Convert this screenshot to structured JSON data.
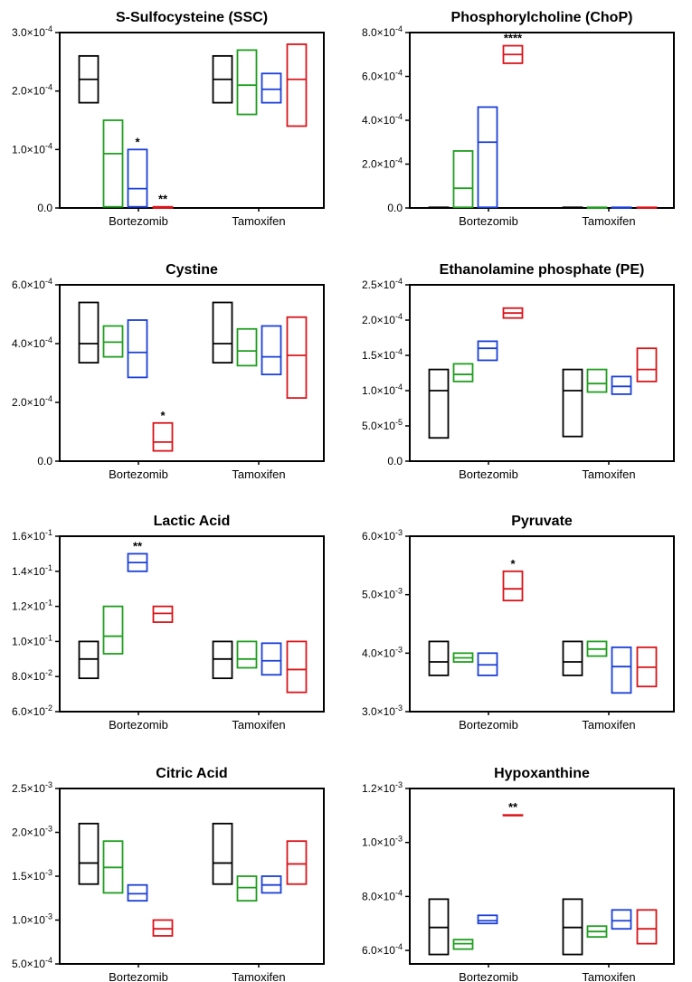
{
  "groups": [
    "Bortezomib",
    "Tamoxifen"
  ],
  "series_colors": [
    "#000000",
    "#1f9e1f",
    "#1a3fd6",
    "#d9141a"
  ],
  "chart_data": [
    {
      "type": "box",
      "title": "S-Sulfocysteine (SSC)",
      "ylim": [
        0,
        0.0003
      ],
      "yticks": [
        0,
        0.0001,
        0.0002,
        0.0003
      ],
      "ytick_labels": [
        {
          "m": "0.0",
          "e": ""
        },
        {
          "m": "1.0×10",
          "e": "-4"
        },
        {
          "m": "2.0×10",
          "e": "-4"
        },
        {
          "m": "3.0×10",
          "e": "-4"
        }
      ],
      "boxes": [
        {
          "group": "Bortezomib",
          "series": 0,
          "min": 0.00018,
          "mid": 0.00022,
          "max": 0.00026
        },
        {
          "group": "Bortezomib",
          "series": 1,
          "min": 2e-06,
          "mid": 9.3e-05,
          "max": 0.00015
        },
        {
          "group": "Bortezomib",
          "series": 2,
          "min": 2e-06,
          "mid": 3.3e-05,
          "max": 0.0001,
          "sig": "*"
        },
        {
          "group": "Bortezomib",
          "series": 3,
          "min": 0.0,
          "mid": 0.0,
          "max": 2e-06,
          "sig": "**"
        },
        {
          "group": "Tamoxifen",
          "series": 0,
          "min": 0.00018,
          "mid": 0.00022,
          "max": 0.00026
        },
        {
          "group": "Tamoxifen",
          "series": 1,
          "min": 0.00016,
          "mid": 0.00021,
          "max": 0.00027
        },
        {
          "group": "Tamoxifen",
          "series": 2,
          "min": 0.00018,
          "mid": 0.000203,
          "max": 0.00023
        },
        {
          "group": "Tamoxifen",
          "series": 3,
          "min": 0.00014,
          "mid": 0.00022,
          "max": 0.00028
        }
      ]
    },
    {
      "type": "box",
      "title": "Phosphorylcholine (ChoP)",
      "ylim": [
        0,
        0.0008
      ],
      "yticks": [
        0,
        0.0002,
        0.0004,
        0.0006,
        0.0008
      ],
      "ytick_labels": [
        {
          "m": "0.0",
          "e": ""
        },
        {
          "m": "2.0×10",
          "e": "-4"
        },
        {
          "m": "4.0×10",
          "e": "-4"
        },
        {
          "m": "6.0×10",
          "e": "-4"
        },
        {
          "m": "8.0×10",
          "e": "-4"
        }
      ],
      "boxes": [
        {
          "group": "Bortezomib",
          "series": 0,
          "min": 0.0,
          "mid": 0.0,
          "max": 3e-06
        },
        {
          "group": "Bortezomib",
          "series": 1,
          "min": 3e-06,
          "mid": 9e-05,
          "max": 0.00026
        },
        {
          "group": "Bortezomib",
          "series": 2,
          "min": 3e-06,
          "mid": 0.0003,
          "max": 0.00046
        },
        {
          "group": "Bortezomib",
          "series": 3,
          "min": 0.00066,
          "mid": 0.0007,
          "max": 0.00074,
          "sig": "****"
        },
        {
          "group": "Tamoxifen",
          "series": 0,
          "min": 0.0,
          "mid": 0.0,
          "max": 3e-06
        },
        {
          "group": "Tamoxifen",
          "series": 1,
          "min": 0.0,
          "mid": 0.0,
          "max": 3e-06
        },
        {
          "group": "Tamoxifen",
          "series": 2,
          "min": 0.0,
          "mid": 0.0,
          "max": 3e-06
        },
        {
          "group": "Tamoxifen",
          "series": 3,
          "min": 0.0,
          "mid": 0.0,
          "max": 3e-06
        }
      ]
    },
    {
      "type": "box",
      "title": "Cystine",
      "ylim": [
        0,
        0.0006
      ],
      "yticks": [
        0,
        0.0002,
        0.0004,
        0.0006
      ],
      "ytick_labels": [
        {
          "m": "0.0",
          "e": ""
        },
        {
          "m": "2.0×10",
          "e": "-4"
        },
        {
          "m": "4.0×10",
          "e": "-4"
        },
        {
          "m": "6.0×10",
          "e": "-4"
        }
      ],
      "boxes": [
        {
          "group": "Bortezomib",
          "series": 0,
          "min": 0.000335,
          "mid": 0.0004,
          "max": 0.00054
        },
        {
          "group": "Bortezomib",
          "series": 1,
          "min": 0.000355,
          "mid": 0.000405,
          "max": 0.00046
        },
        {
          "group": "Bortezomib",
          "series": 2,
          "min": 0.000285,
          "mid": 0.00037,
          "max": 0.00048
        },
        {
          "group": "Bortezomib",
          "series": 3,
          "min": 3.5e-05,
          "mid": 6.5e-05,
          "max": 0.00013,
          "sig": "*"
        },
        {
          "group": "Tamoxifen",
          "series": 0,
          "min": 0.000335,
          "mid": 0.0004,
          "max": 0.00054
        },
        {
          "group": "Tamoxifen",
          "series": 1,
          "min": 0.000325,
          "mid": 0.000375,
          "max": 0.00045
        },
        {
          "group": "Tamoxifen",
          "series": 2,
          "min": 0.000295,
          "mid": 0.000355,
          "max": 0.00046
        },
        {
          "group": "Tamoxifen",
          "series": 3,
          "min": 0.000215,
          "mid": 0.00036,
          "max": 0.00049
        }
      ]
    },
    {
      "type": "box",
      "title": "Ethanolamine phosphate (PE)",
      "ylim": [
        0,
        0.00025
      ],
      "yticks": [
        0,
        5e-05,
        0.0001,
        0.00015,
        0.0002,
        0.00025
      ],
      "ytick_labels": [
        {
          "m": "0.0",
          "e": ""
        },
        {
          "m": "5.0×10",
          "e": "-5"
        },
        {
          "m": "1.0×10",
          "e": "-4"
        },
        {
          "m": "1.5×10",
          "e": "-4"
        },
        {
          "m": "2.0×10",
          "e": "-4"
        },
        {
          "m": "2.5×10",
          "e": "-4"
        }
      ],
      "boxes": [
        {
          "group": "Bortezomib",
          "series": 0,
          "min": 3.3e-05,
          "mid": 0.0001,
          "max": 0.00013
        },
        {
          "group": "Bortezomib",
          "series": 1,
          "min": 0.000113,
          "mid": 0.000123,
          "max": 0.000138
        },
        {
          "group": "Bortezomib",
          "series": 2,
          "min": 0.000143,
          "mid": 0.00016,
          "max": 0.00017
        },
        {
          "group": "Bortezomib",
          "series": 3,
          "min": 0.000203,
          "mid": 0.00021,
          "max": 0.000217
        },
        {
          "group": "Tamoxifen",
          "series": 0,
          "min": 3.5e-05,
          "mid": 0.0001,
          "max": 0.00013
        },
        {
          "group": "Tamoxifen",
          "series": 1,
          "min": 9.8e-05,
          "mid": 0.00011,
          "max": 0.00013
        },
        {
          "group": "Tamoxifen",
          "series": 2,
          "min": 9.5e-05,
          "mid": 0.000106,
          "max": 0.00012
        },
        {
          "group": "Tamoxifen",
          "series": 3,
          "min": 0.000113,
          "mid": 0.00013,
          "max": 0.00016
        }
      ]
    },
    {
      "type": "box",
      "title": "Lactic Acid",
      "ylim": [
        0.06,
        0.16
      ],
      "yticks": [
        0.06,
        0.08,
        0.1,
        0.12,
        0.14,
        0.16
      ],
      "ytick_labels": [
        {
          "m": "6.0×10",
          "e": "-2"
        },
        {
          "m": "8.0×10",
          "e": "-2"
        },
        {
          "m": "1.0×10",
          "e": "-1"
        },
        {
          "m": "1.2×10",
          "e": "-1"
        },
        {
          "m": "1.4×10",
          "e": "-1"
        },
        {
          "m": "1.6×10",
          "e": "-1"
        }
      ],
      "boxes": [
        {
          "group": "Bortezomib",
          "series": 0,
          "min": 0.079,
          "mid": 0.09,
          "max": 0.1
        },
        {
          "group": "Bortezomib",
          "series": 1,
          "min": 0.093,
          "mid": 0.103,
          "max": 0.12
        },
        {
          "group": "Bortezomib",
          "series": 2,
          "min": 0.14,
          "mid": 0.145,
          "max": 0.15,
          "sig": "**"
        },
        {
          "group": "Bortezomib",
          "series": 3,
          "min": 0.111,
          "mid": 0.116,
          "max": 0.12
        },
        {
          "group": "Tamoxifen",
          "series": 0,
          "min": 0.079,
          "mid": 0.09,
          "max": 0.1
        },
        {
          "group": "Tamoxifen",
          "series": 1,
          "min": 0.085,
          "mid": 0.09,
          "max": 0.1
        },
        {
          "group": "Tamoxifen",
          "series": 2,
          "min": 0.081,
          "mid": 0.089,
          "max": 0.099
        },
        {
          "group": "Tamoxifen",
          "series": 3,
          "min": 0.071,
          "mid": 0.084,
          "max": 0.1
        }
      ]
    },
    {
      "type": "box",
      "title": "Pyruvate",
      "ylim": [
        0.003,
        0.006
      ],
      "yticks": [
        0.003,
        0.004,
        0.005,
        0.006
      ],
      "ytick_labels": [
        {
          "m": "3.0×10",
          "e": "-3"
        },
        {
          "m": "4.0×10",
          "e": "-3"
        },
        {
          "m": "5.0×10",
          "e": "-3"
        },
        {
          "m": "6.0×10",
          "e": "-3"
        }
      ],
      "boxes": [
        {
          "group": "Bortezomib",
          "series": 0,
          "min": 0.00362,
          "mid": 0.00385,
          "max": 0.0042
        },
        {
          "group": "Bortezomib",
          "series": 1,
          "min": 0.00385,
          "mid": 0.00392,
          "max": 0.004
        },
        {
          "group": "Bortezomib",
          "series": 2,
          "min": 0.00362,
          "mid": 0.0038,
          "max": 0.004
        },
        {
          "group": "Bortezomib",
          "series": 3,
          "min": 0.0049,
          "mid": 0.0051,
          "max": 0.0054,
          "sig": "*"
        },
        {
          "group": "Tamoxifen",
          "series": 0,
          "min": 0.00362,
          "mid": 0.00385,
          "max": 0.0042
        },
        {
          "group": "Tamoxifen",
          "series": 1,
          "min": 0.00395,
          "mid": 0.00407,
          "max": 0.0042
        },
        {
          "group": "Tamoxifen",
          "series": 2,
          "min": 0.00332,
          "mid": 0.00377,
          "max": 0.0041
        },
        {
          "group": "Tamoxifen",
          "series": 3,
          "min": 0.00343,
          "mid": 0.00376,
          "max": 0.0041
        }
      ]
    },
    {
      "type": "box",
      "title": "Citric Acid",
      "ylim": [
        0.0005,
        0.0025
      ],
      "yticks": [
        0.0005,
        0.001,
        0.0015,
        0.002,
        0.0025
      ],
      "ytick_labels": [
        {
          "m": "5.0×10",
          "e": "-4"
        },
        {
          "m": "1.0×10",
          "e": "-3"
        },
        {
          "m": "1.5×10",
          "e": "-3"
        },
        {
          "m": "2.0×10",
          "e": "-3"
        },
        {
          "m": "2.5×10",
          "e": "-3"
        }
      ],
      "boxes": [
        {
          "group": "Bortezomib",
          "series": 0,
          "min": 0.00141,
          "mid": 0.00165,
          "max": 0.0021
        },
        {
          "group": "Bortezomib",
          "series": 1,
          "min": 0.00131,
          "mid": 0.0016,
          "max": 0.0019
        },
        {
          "group": "Bortezomib",
          "series": 2,
          "min": 0.00122,
          "mid": 0.0013,
          "max": 0.0014
        },
        {
          "group": "Bortezomib",
          "series": 3,
          "min": 0.00082,
          "mid": 0.0009,
          "max": 0.001
        },
        {
          "group": "Tamoxifen",
          "series": 0,
          "min": 0.00141,
          "mid": 0.00165,
          "max": 0.0021
        },
        {
          "group": "Tamoxifen",
          "series": 1,
          "min": 0.00122,
          "mid": 0.00137,
          "max": 0.0015
        },
        {
          "group": "Tamoxifen",
          "series": 2,
          "min": 0.00131,
          "mid": 0.0014,
          "max": 0.0015
        },
        {
          "group": "Tamoxifen",
          "series": 3,
          "min": 0.00141,
          "mid": 0.00164,
          "max": 0.0019
        }
      ]
    },
    {
      "type": "box",
      "title": "Hypoxanthine",
      "ylim": [
        0.00055,
        0.0012
      ],
      "yticks": [
        0.0006,
        0.0008,
        0.001,
        0.0012
      ],
      "ytick_labels": [
        {
          "m": "6.0×10",
          "e": "-4"
        },
        {
          "m": "8.0×10",
          "e": "-4"
        },
        {
          "m": "1.0×10",
          "e": "-3"
        },
        {
          "m": "1.2×10",
          "e": "-3"
        }
      ],
      "boxes": [
        {
          "group": "Bortezomib",
          "series": 0,
          "min": 0.000585,
          "mid": 0.000685,
          "max": 0.00079
        },
        {
          "group": "Bortezomib",
          "series": 1,
          "min": 0.000605,
          "mid": 0.000625,
          "max": 0.00064
        },
        {
          "group": "Bortezomib",
          "series": 2,
          "min": 0.0007,
          "mid": 0.00071,
          "max": 0.00073
        },
        {
          "group": "Bortezomib",
          "series": 3,
          "min": 0.0011,
          "mid": 0.0011,
          "max": 0.001102,
          "sig": "**"
        },
        {
          "group": "Tamoxifen",
          "series": 0,
          "min": 0.000585,
          "mid": 0.000685,
          "max": 0.00079
        },
        {
          "group": "Tamoxifen",
          "series": 1,
          "min": 0.00065,
          "mid": 0.00067,
          "max": 0.00069
        },
        {
          "group": "Tamoxifen",
          "series": 2,
          "min": 0.00068,
          "mid": 0.00071,
          "max": 0.00075
        },
        {
          "group": "Tamoxifen",
          "series": 3,
          "min": 0.000625,
          "mid": 0.00068,
          "max": 0.00075
        }
      ]
    }
  ]
}
